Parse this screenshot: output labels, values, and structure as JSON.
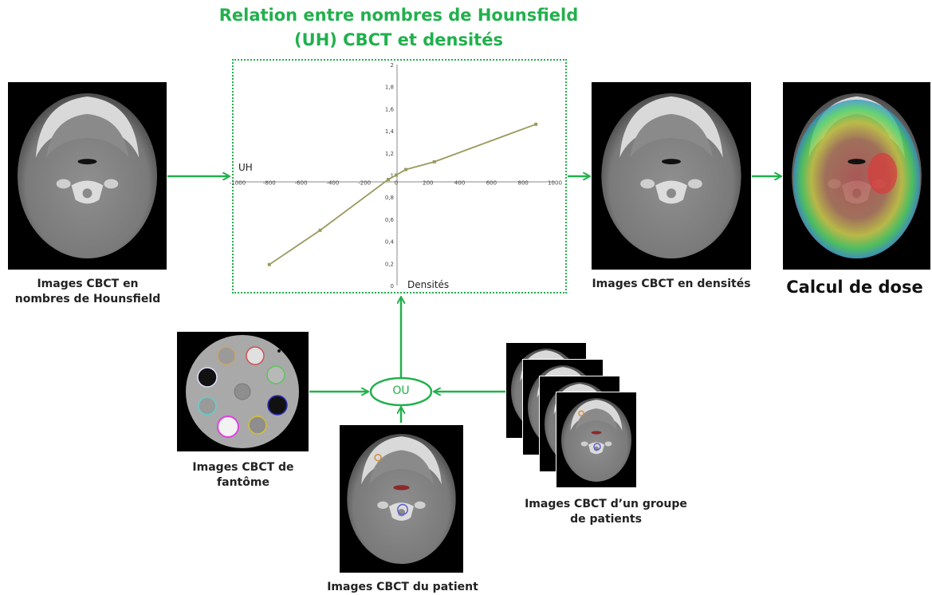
{
  "title": {
    "line1": "Relation entre nombres de Hounsfield",
    "line2": "(UH) CBCT et densités"
  },
  "captions": {
    "hu_images": [
      "Images CBCT en",
      "nombres de Hounsfield"
    ],
    "density_images": "Images CBCT en densités",
    "dose": "Calcul de dose",
    "phantom": [
      "Images CBCT de",
      "fantôme"
    ],
    "patient": "Images CBCT du patient",
    "group": [
      "Images CBCT d’un groupe",
      "de patients"
    ]
  },
  "junction_label": "OU",
  "colors": {
    "accent": "#22b04d",
    "curve": "#9a9a5e"
  },
  "chart_data": {
    "type": "line",
    "xlabel": "UH",
    "ylabel": "Densités",
    "xlim": [
      -1000,
      1000
    ],
    "ylim": [
      0,
      2
    ],
    "x_ticks": [
      "-1000",
      "-800",
      "-600",
      "-400",
      "-200",
      "0",
      "200",
      "400",
      "600",
      "800",
      "1000"
    ],
    "y_ticks": [
      "0",
      "0,2",
      "0,4",
      "0,6",
      "0,8",
      "1",
      "1,2",
      "1,4",
      "1,6",
      "1,8",
      "2"
    ],
    "series": [
      {
        "x": [
          -800,
          -480,
          -50,
          0,
          60,
          240,
          880
        ],
        "y": [
          0.19,
          0.5,
          0.96,
          1.0,
          1.05,
          1.12,
          1.46
        ]
      }
    ]
  }
}
